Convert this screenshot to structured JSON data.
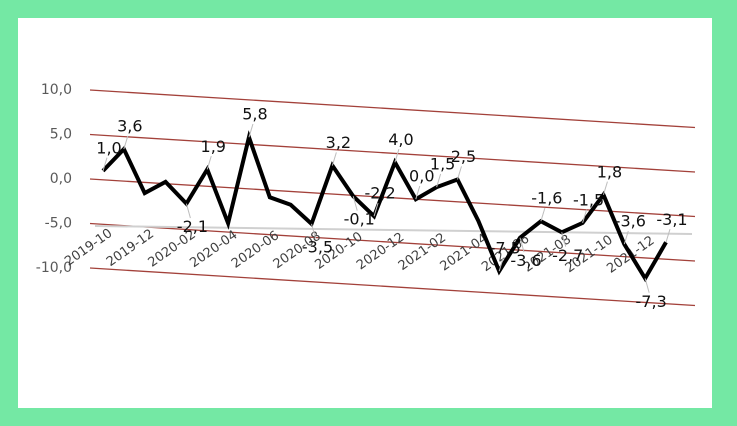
{
  "chart_data": {
    "type": "line",
    "categories": [
      "2019-10",
      null,
      "2019-12",
      null,
      "2020-02",
      null,
      "2020-04",
      null,
      "2020-06",
      null,
      "2020-08",
      null,
      "2020-10",
      null,
      "2020-12",
      null,
      "2021-02",
      null,
      "2021-04",
      null,
      "2021-06",
      null,
      "2021-08",
      null,
      "2021-10",
      null,
      "2021-12",
      null
    ],
    "series": [
      {
        "name": null,
        "color": "#000000",
        "values": [
          1.0,
          3.6,
          -1.2,
          0.2,
          -2.1,
          1.9,
          -4.0,
          5.8,
          -0.8,
          -1.5,
          -3.5,
          3.2,
          -0.1,
          -2.2,
          4.0,
          0.0,
          1.5,
          2.5,
          -2.0,
          -7.5,
          -3.6,
          -1.6,
          -2.7,
          -1.5,
          1.8,
          -3.6,
          -7.3,
          -3.1
        ],
        "value_labels": [
          "1,0",
          "3,6",
          null,
          null,
          "-2,1",
          "1,9",
          null,
          "5,8",
          null,
          null,
          "-3,5",
          "3,2",
          "-0,1",
          "-2,2",
          "4,0",
          "0,0",
          "1,5",
          "2,5",
          null,
          "-7,5",
          "-3,6",
          "-1,6",
          "-2,7",
          "-1,5",
          "1,8",
          "-3,6",
          "-7,3",
          "-3,1"
        ]
      }
    ],
    "ylim": [
      -10,
      10
    ],
    "yticks": [
      {
        "value": -10,
        "label": "-10,0"
      },
      {
        "value": -5,
        "label": "-5,0"
      },
      {
        "value": 0,
        "label": "0,0"
      },
      {
        "value": 5,
        "label": "5,0"
      },
      {
        "value": 10,
        "label": "10,0"
      }
    ],
    "grid": true,
    "grid_color": "#a3413a"
  }
}
